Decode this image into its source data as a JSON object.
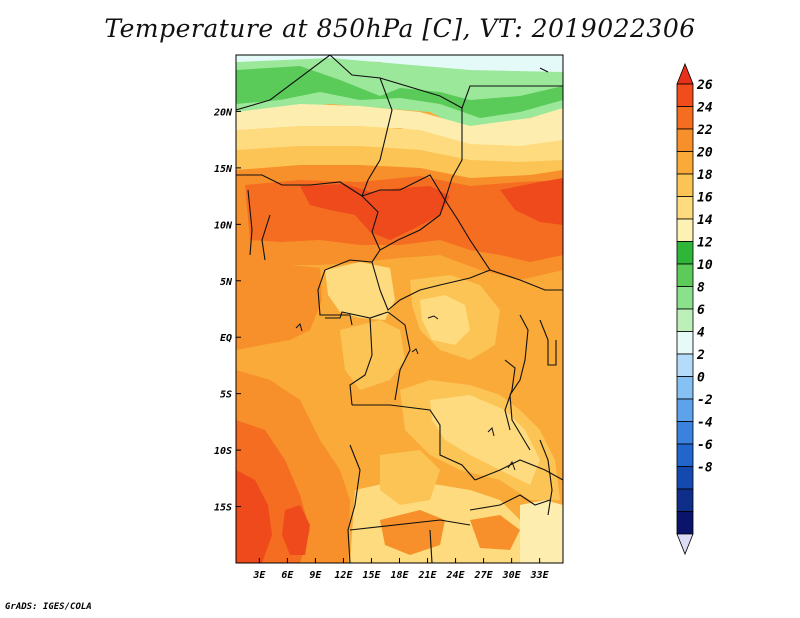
{
  "title": "Temperature at 850hPa [C], VT: 2019022306",
  "credit": "GrADS: IGES/COLA",
  "map": {
    "lat_labels": [
      "20N",
      "15N",
      "10N",
      "5N",
      "EQ",
      "5S",
      "10S",
      "15S"
    ],
    "lon_labels": [
      "3E",
      "6E",
      "9E",
      "12E",
      "15E",
      "18E",
      "21E",
      "24E",
      "27E",
      "30E",
      "33E"
    ],
    "lat_range": [
      -20,
      25
    ],
    "lon_range": [
      0.5,
      35.5
    ]
  },
  "colorbar": {
    "labels": [
      "26",
      "24",
      "22",
      "20",
      "18",
      "16",
      "14",
      "12",
      "10",
      "8",
      "6",
      "4",
      "2",
      "0",
      "-2",
      "-4",
      "-6",
      "-8"
    ],
    "colors": [
      "#e8311a",
      "#f04c1c",
      "#f46d21",
      "#f7902a",
      "#f9aa38",
      "#fbc455",
      "#fddb7e",
      "#fdf2b4",
      "#2fb639",
      "#5ccb5a",
      "#8be18b",
      "#bdf0b9",
      "#e6fbf7",
      "#b4dcfa",
      "#86c1f3",
      "#5da2ea",
      "#3b82de",
      "#2265cc",
      "#1449b0",
      "#0e2e8a",
      "#0b146b",
      "#dcdcf6"
    ]
  },
  "field": {
    "palette": {
      "pale_blue": "#e3faf9",
      "light_green": "#9ce89a",
      "green": "#5acb58",
      "pale_yellow": "#fdeeb0",
      "light_yellow": "#fddb7e",
      "yellow_orange": "#fbc455",
      "orange": "#f9aa38",
      "dark_orange": "#f7902a",
      "red_orange": "#f46d21",
      "red": "#ee4a1c"
    }
  }
}
